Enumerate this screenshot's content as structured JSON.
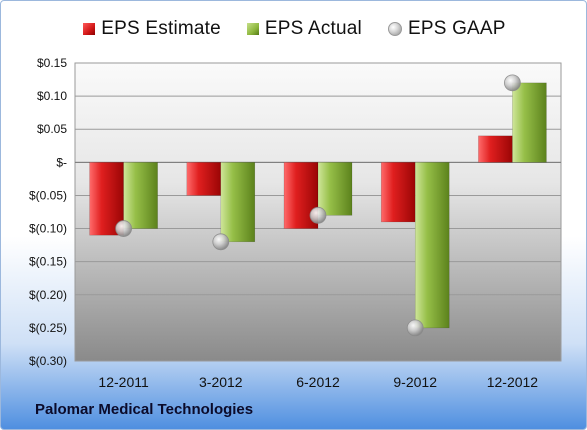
{
  "legend": {
    "estimate_label": "EPS Estimate",
    "actual_label": "EPS Actual",
    "gaap_label": "EPS GAAP"
  },
  "footer": {
    "company": "Palomar Medical Technologies"
  },
  "colors": {
    "estimate": "#d41a1a",
    "actual": "#8cb63c",
    "gaap": "#bdbdbd"
  },
  "chart_data": {
    "type": "bar",
    "title": "",
    "xlabel": "",
    "ylabel": "",
    "categories": [
      "12-2011",
      "3-2012",
      "6-2012",
      "9-2012",
      "12-2012"
    ],
    "series": [
      {
        "name": "EPS Estimate",
        "values": [
          -0.11,
          -0.05,
          -0.1,
          -0.09,
          0.04
        ]
      },
      {
        "name": "EPS Actual",
        "values": [
          -0.1,
          -0.12,
          -0.08,
          -0.25,
          0.12
        ]
      },
      {
        "name": "EPS GAAP",
        "values": [
          -0.1,
          -0.12,
          -0.08,
          -0.25,
          0.12
        ],
        "marker": "sphere"
      }
    ],
    "ylim": [
      -0.3,
      0.15
    ],
    "yticks": [
      0.15,
      0.1,
      0.05,
      0,
      -0.05,
      -0.1,
      -0.15,
      -0.2,
      -0.25,
      -0.3
    ],
    "ytick_labels": [
      "$0.15",
      "$0.10",
      "$0.05",
      "$-",
      "$(0.05)",
      "$(0.10)",
      "$(0.15)",
      "$(0.20)",
      "$(0.25)",
      "$(0.30)"
    ],
    "grid": true,
    "legend_position": "top"
  }
}
